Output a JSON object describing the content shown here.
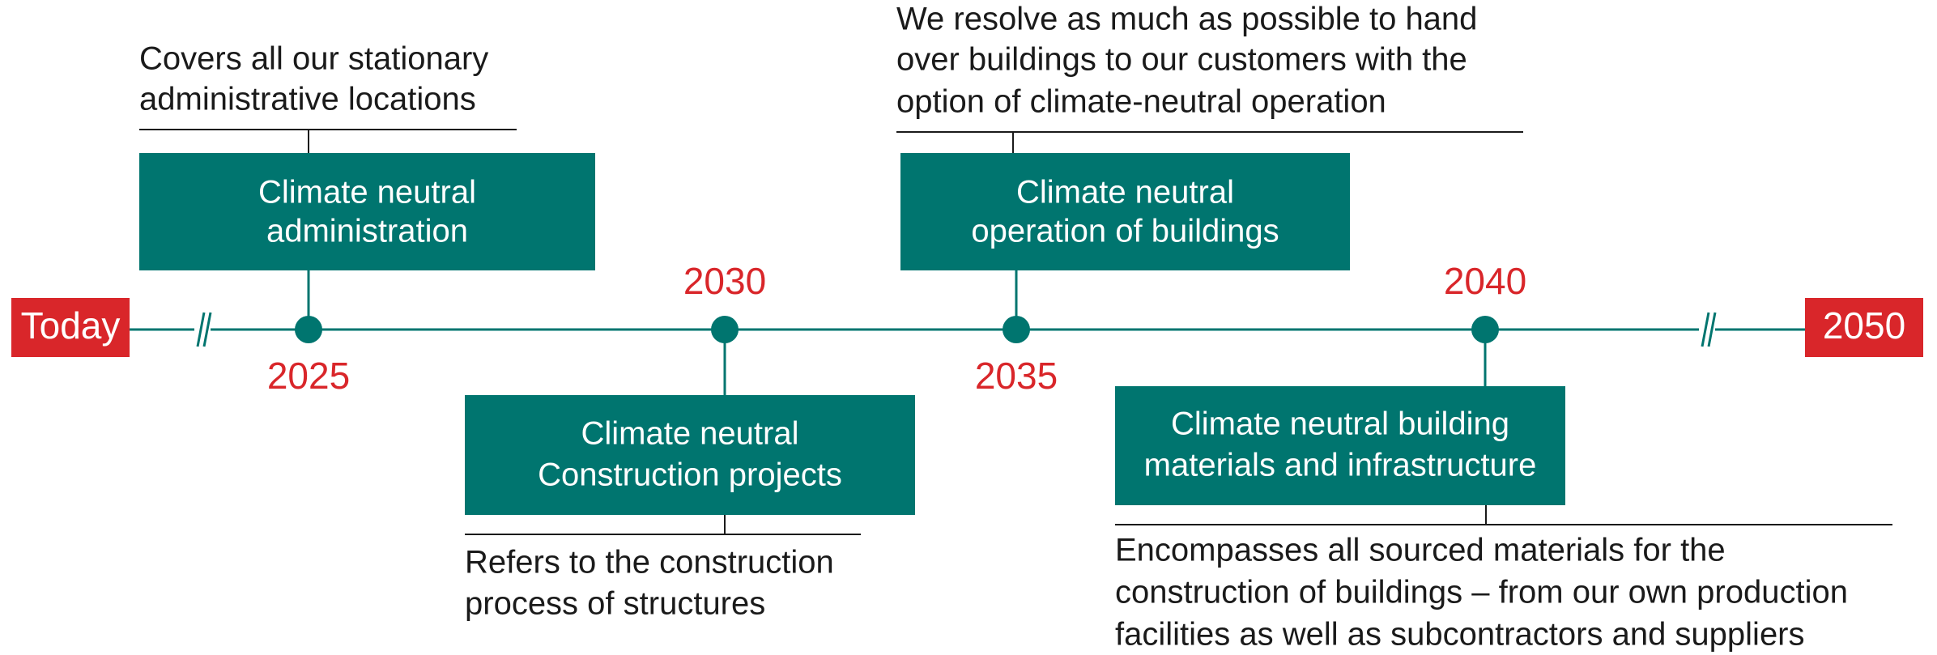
{
  "timeline": {
    "start": "Today",
    "end": "2050"
  },
  "milestones": [
    {
      "year": "2025",
      "title": [
        "Climate neutral",
        "administration"
      ],
      "description": [
        "Covers all our stationary",
        "administrative locations"
      ]
    },
    {
      "year": "2030",
      "title": [
        "Climate neutral",
        "Construction projects"
      ],
      "description": [
        "Refers to the construction",
        "process of structures"
      ]
    },
    {
      "year": "2035",
      "title": [
        "Climate neutral",
        "operation of buildings"
      ],
      "description": [
        "We resolve as much as possible to hand",
        "over buildings to our customers with the",
        "option of climate-neutral operation"
      ]
    },
    {
      "year": "2040",
      "title": [
        "Climate neutral building",
        "materials and infrastructure"
      ],
      "description": [
        "Encompasses all sourced materials for the",
        "construction of buildings – from our own production",
        "facilities as well as subcontractors and suppliers"
      ]
    }
  ]
}
